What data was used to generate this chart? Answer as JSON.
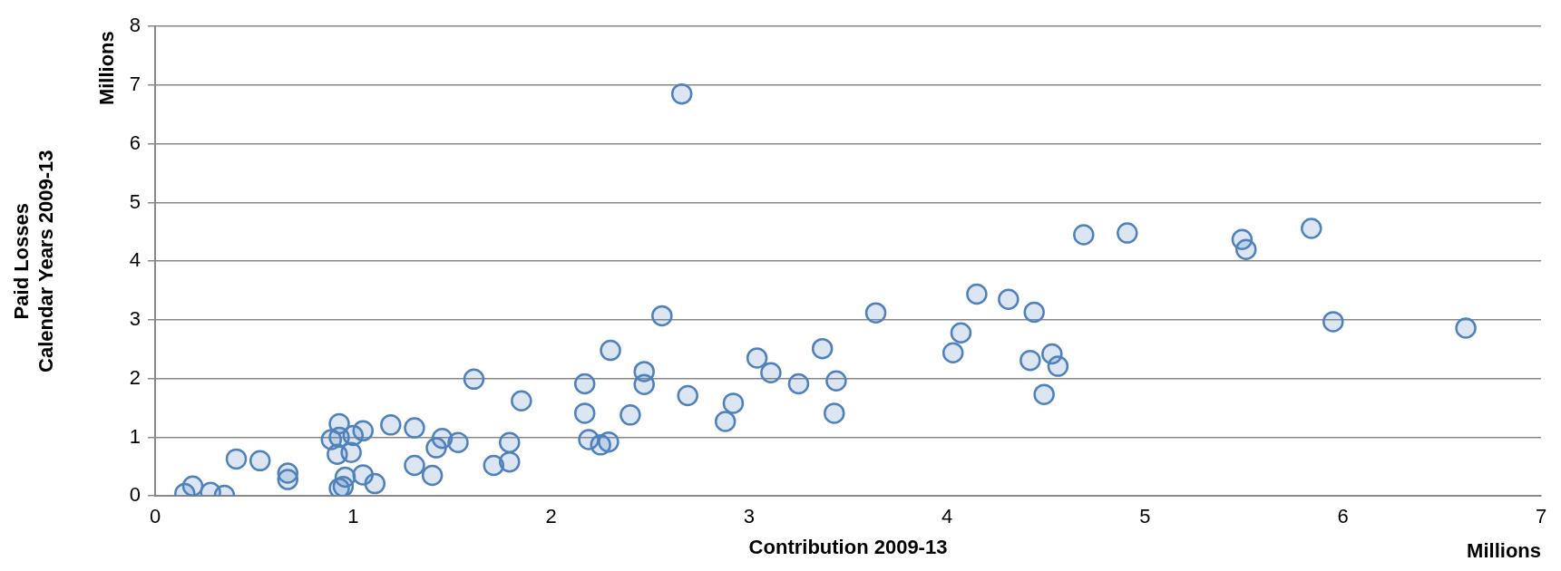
{
  "chart_data": {
    "type": "scatter",
    "xlabel": "Contribution 2009-13",
    "ylabel": "Paid Losses\nCalendar Years 2009-13",
    "annotations": [
      "Millions",
      "Millions"
    ],
    "xlim": [
      0,
      7
    ],
    "xticks": [
      0,
      1,
      2,
      3,
      4,
      5,
      6,
      7
    ],
    "ylim": [
      0,
      8
    ],
    "yticks": [
      0,
      1,
      2,
      3,
      4,
      5,
      6,
      7,
      8
    ],
    "grid": "y",
    "marker": "circle",
    "legend": false,
    "series": [
      {
        "color": "#4f81bd",
        "x": [
          0.15,
          0.19,
          0.28,
          0.35,
          0.41,
          0.53,
          0.67,
          0.67,
          0.89,
          0.93,
          0.93,
          1.05,
          1.0,
          0.92,
          0.99,
          0.96,
          0.93,
          0.95,
          1.05,
          1.11,
          1.19,
          1.31,
          1.31,
          1.4,
          1.42,
          1.45,
          1.53,
          1.61,
          1.71,
          1.79,
          1.79,
          1.85,
          2.17,
          2.17,
          2.19,
          2.25,
          2.29,
          2.3,
          2.4,
          2.47,
          2.47,
          2.56,
          2.66,
          2.69,
          2.92,
          2.88,
          3.04,
          3.11,
          3.25,
          3.37,
          3.44,
          3.43,
          3.64,
          4.03,
          4.07,
          4.15,
          4.31,
          4.44,
          4.42,
          4.53,
          4.56,
          4.49,
          4.69,
          4.91,
          5.49,
          5.51,
          5.84,
          5.95,
          6.62
        ],
        "values": [
          0.04,
          0.17,
          0.06,
          0.01,
          0.63,
          0.6,
          0.39,
          0.28,
          0.96,
          1.23,
          1.0,
          1.11,
          1.03,
          0.71,
          0.74,
          0.32,
          0.13,
          0.16,
          0.36,
          0.21,
          1.21,
          1.16,
          0.52,
          0.35,
          0.82,
          0.98,
          0.91,
          1.99,
          0.52,
          0.91,
          0.58,
          1.62,
          1.91,
          1.41,
          0.96,
          0.87,
          0.92,
          2.48,
          1.38,
          2.12,
          1.9,
          3.07,
          6.85,
          1.71,
          1.58,
          1.27,
          2.35,
          2.1,
          1.91,
          2.51,
          1.96,
          1.41,
          3.12,
          2.44,
          2.78,
          3.44,
          3.35,
          3.13,
          2.31,
          2.42,
          2.21,
          1.73,
          4.45,
          4.48,
          4.37,
          4.2,
          4.56,
          2.97,
          2.86
        ]
      }
    ]
  }
}
